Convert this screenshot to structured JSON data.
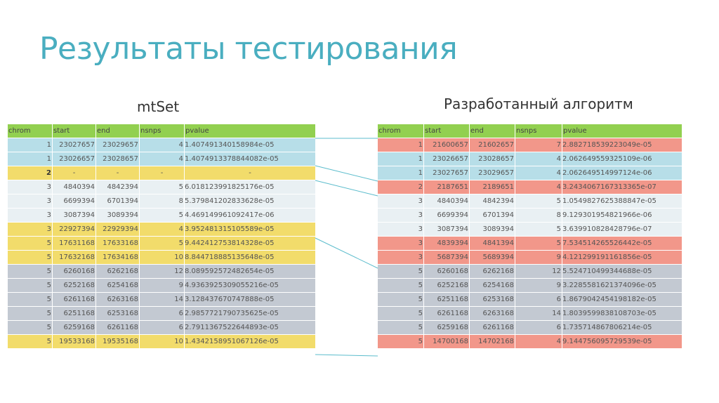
{
  "title": "Результаты тестирования",
  "left": {
    "caption": "mtSet",
    "headers": [
      "chrom",
      "start",
      "end",
      "nsnps",
      "pvalue"
    ],
    "rows": [
      {
        "c": "blue",
        "v": [
          "1",
          "23027657",
          "23029657",
          "4",
          "1.407491340158984e-05"
        ]
      },
      {
        "c": "blue",
        "v": [
          "1",
          "23026657",
          "23028657",
          "4",
          "1.4074913378844082e-05"
        ]
      },
      {
        "c": "yellow",
        "v": [
          "2",
          "-",
          "-",
          "-",
          "-"
        ]
      },
      {
        "c": "light",
        "v": [
          "3",
          "4840394",
          "4842394",
          "5",
          "6.018123991825176e-05"
        ]
      },
      {
        "c": "light",
        "v": [
          "3",
          "6699394",
          "6701394",
          "8",
          "5.379841202833628e-05"
        ]
      },
      {
        "c": "light",
        "v": [
          "3",
          "3087394",
          "3089394",
          "5",
          "4.469149961092417e-06"
        ]
      },
      {
        "c": "yellow",
        "v": [
          "3",
          "22927394",
          "22929394",
          "4",
          "3.952481315105589e-05"
        ]
      },
      {
        "c": "yellow",
        "v": [
          "5",
          "17631168",
          "17633168",
          "5",
          "9.442412753814328e-05"
        ]
      },
      {
        "c": "yellow",
        "v": [
          "5",
          "17632168",
          "17634168",
          "10",
          "8.844718885135648e-05"
        ]
      },
      {
        "c": "gray",
        "v": [
          "5",
          "6260168",
          "6262168",
          "12",
          "8.089592572482654e-05"
        ]
      },
      {
        "c": "gray",
        "v": [
          "5",
          "6252168",
          "6254168",
          "9",
          "4.9363925309055216e-05"
        ]
      },
      {
        "c": "gray",
        "v": [
          "5",
          "6261168",
          "6263168",
          "14",
          "3.128437670747888e-05"
        ]
      },
      {
        "c": "gray",
        "v": [
          "5",
          "6251168",
          "6253168",
          "6",
          "2.9857721790735625e-05"
        ]
      },
      {
        "c": "gray",
        "v": [
          "5",
          "6259168",
          "6261168",
          "6",
          "2.7911367522644893e-05"
        ]
      },
      {
        "c": "yellow",
        "v": [
          "5",
          "19533168",
          "19535168",
          "10",
          "1.4342158951067126e-05"
        ]
      }
    ]
  },
  "right": {
    "caption": "Разработанный алгоритм",
    "headers": [
      "chrom",
      "start",
      "end",
      "nsnps",
      "pvalue"
    ],
    "rows": [
      {
        "c": "red",
        "v": [
          "1",
          "21600657",
          "21602657",
          "7",
          "2.882718539223049e-05"
        ]
      },
      {
        "c": "blue",
        "v": [
          "1",
          "23026657",
          "23028657",
          "4",
          "2.062649559325109e-06"
        ]
      },
      {
        "c": "blue",
        "v": [
          "1",
          "23027657",
          "23029657",
          "4",
          "2.062649514997124e-06"
        ]
      },
      {
        "c": "red",
        "v": [
          "2",
          "2187651",
          "2189651",
          "4",
          "3.2434067167313365e-07"
        ]
      },
      {
        "c": "light",
        "v": [
          "3",
          "4840394",
          "4842394",
          "5",
          "1.0549827625388847e-05"
        ]
      },
      {
        "c": "light",
        "v": [
          "3",
          "6699394",
          "6701394",
          "8",
          "9.129301954821966e-06"
        ]
      },
      {
        "c": "light",
        "v": [
          "3",
          "3087394",
          "3089394",
          "5",
          "3.639910828428796e-07"
        ]
      },
      {
        "c": "red",
        "v": [
          "3",
          "4839394",
          "4841394",
          "5",
          "7.534514265526442e-05"
        ]
      },
      {
        "c": "red",
        "v": [
          "3",
          "5687394",
          "5689394",
          "9",
          "4.121299191161856e-05"
        ]
      },
      {
        "c": "gray",
        "v": [
          "5",
          "6260168",
          "6262168",
          "12",
          "5.524710499344688e-05"
        ]
      },
      {
        "c": "gray",
        "v": [
          "5",
          "6252168",
          "6254168",
          "9",
          "3.2285581621374096e-05"
        ]
      },
      {
        "c": "gray",
        "v": [
          "5",
          "6251168",
          "6253168",
          "6",
          "1.8679042454198182e-05"
        ]
      },
      {
        "c": "gray",
        "v": [
          "5",
          "6261168",
          "6263168",
          "14",
          "1.8039599838108703e-05"
        ]
      },
      {
        "c": "gray",
        "v": [
          "5",
          "6259168",
          "6261168",
          "6",
          "1.735714867806214e-05"
        ]
      },
      {
        "c": "red",
        "v": [
          "5",
          "14700168",
          "14702168",
          "4",
          "9.144756095729539e-05"
        ]
      }
    ]
  },
  "colors": {
    "title": "#4aaec0",
    "header": "#92d050",
    "blue": "#b7dee8",
    "yellow": "#f2dc6b",
    "light": "#e9f0f3",
    "gray": "#c3c9d2",
    "red": "#f2978a",
    "connector": "#5bbccc"
  }
}
